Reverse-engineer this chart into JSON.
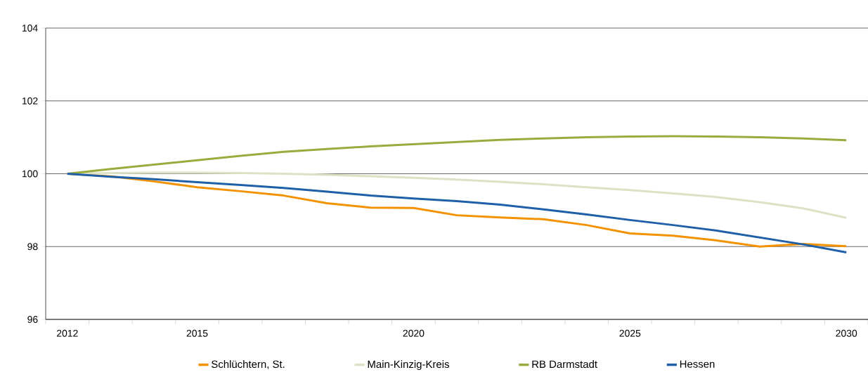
{
  "chart_data": {
    "type": "line",
    "categories": [
      "2012",
      null,
      null,
      "2015",
      null,
      null,
      null,
      null,
      "2020",
      null,
      null,
      null,
      null,
      "2025",
      null,
      null,
      null,
      null,
      "2030"
    ],
    "series": [
      {
        "name": "Schlüchtern, St.",
        "color": "#f39200",
        "values": [
          100,
          99.93,
          99.79,
          99.63,
          99.52,
          99.4,
          99.19,
          99.07,
          99.06,
          98.86,
          98.8,
          98.75,
          98.59,
          98.36,
          98.3,
          98.17,
          98.0,
          98.07,
          98.01
        ]
      },
      {
        "name": "Main-Kinzig-Kreis",
        "color": "#dde2c6",
        "values": [
          100,
          100.02,
          100.03,
          100.03,
          100.02,
          100.0,
          99.97,
          99.93,
          99.89,
          99.84,
          99.78,
          99.71,
          99.63,
          99.55,
          99.46,
          99.36,
          99.22,
          99.05,
          98.79
        ]
      },
      {
        "name": "RB Darmstadt",
        "color": "#9aab3e",
        "values": [
          100,
          100.13,
          100.25,
          100.37,
          100.49,
          100.6,
          100.68,
          100.75,
          100.81,
          100.87,
          100.93,
          100.97,
          101.0,
          101.02,
          101.03,
          101.02,
          101.0,
          100.97,
          100.92
        ]
      },
      {
        "name": "Hessen",
        "color": "#1f5fa8",
        "values": [
          100,
          99.92,
          99.85,
          99.77,
          99.69,
          99.61,
          99.51,
          99.4,
          99.32,
          99.25,
          99.15,
          99.02,
          98.88,
          98.73,
          98.59,
          98.44,
          98.25,
          98.06,
          97.84
        ]
      }
    ],
    "ylim": [
      96,
      104
    ],
    "yticks": [
      96,
      98,
      100,
      102,
      104
    ],
    "grid": "y",
    "legend": "bottom",
    "marker": "none",
    "line_style": "solid"
  }
}
